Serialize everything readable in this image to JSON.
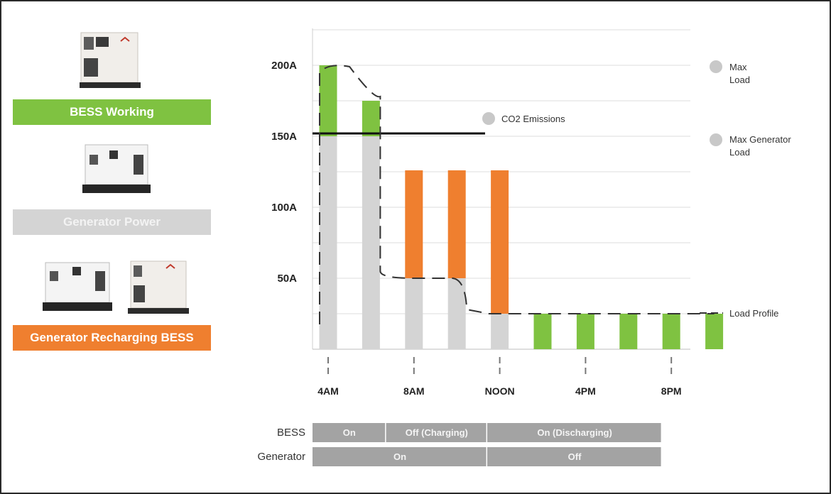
{
  "colors": {
    "green": "#7fc241",
    "gray": "#d4d4d4",
    "orange": "#ef7f2f",
    "timeline_bar": "#a3a3a3"
  },
  "legend": [
    {
      "label": "BESS Working",
      "color": "#7fc241",
      "icon": "bess-unit-image"
    },
    {
      "label": "Generator Power",
      "color": "#d4d4d4",
      "icon": "generator-unit-image"
    },
    {
      "label": "Generator Recharging BESS",
      "color": "#ef7f2f",
      "icon": "generator-and-bess-image"
    }
  ],
  "annotations": {
    "max_load": "Max\nLoad",
    "co2": "CO2 Emissions",
    "max_generator_load": "Max Generator\nLoad",
    "load_profile": "Load Profile"
  },
  "chart_data": {
    "type": "bar",
    "stacked": true,
    "y_tick_labels": [
      "50A",
      "100A",
      "150A",
      "200A"
    ],
    "y_ticks": [
      50,
      100,
      150,
      200
    ],
    "ylim": [
      0,
      225
    ],
    "x_tick_labels": [
      "4AM",
      "8AM",
      "NOON",
      "4PM",
      "8PM"
    ],
    "x_ticks_hours": [
      4,
      8,
      12,
      16,
      20
    ],
    "bar_hours": [
      4,
      6,
      8,
      10,
      12,
      14,
      16,
      18,
      20,
      22
    ],
    "series": [
      {
        "name": "Generator Power",
        "color": "#d4d4d4",
        "values": [
          150,
          150,
          50,
          50,
          25,
          0,
          0,
          0,
          0,
          0
        ]
      },
      {
        "name": "BESS Working",
        "color": "#7fc241",
        "values": [
          50,
          25,
          0,
          0,
          0,
          25,
          25,
          25,
          25,
          25
        ]
      },
      {
        "name": "Generator Recharging BESS",
        "color": "#ef7f2f",
        "values": [
          0,
          0,
          76,
          76,
          101,
          0,
          0,
          0,
          0,
          0
        ]
      }
    ],
    "max_generator_load": 152,
    "max_load": 200,
    "load_profile": [
      200,
      175,
      50,
      50,
      25,
      25,
      25,
      25,
      25,
      25
    ],
    "grid": true
  },
  "timeline": {
    "rows": [
      {
        "label": "BESS",
        "segments": [
          {
            "label": "On",
            "from_hour": 3.5,
            "to_hour": 7.5
          },
          {
            "label": "Off (Charging)",
            "from_hour": 7.5,
            "to_hour": 13.0
          },
          {
            "label": "On  (Discharging)",
            "from_hour": 13.0,
            "to_hour": 22.5
          }
        ]
      },
      {
        "label": "Generator",
        "segments": [
          {
            "label": "On",
            "from_hour": 3.5,
            "to_hour": 13.0
          },
          {
            "label": "Off",
            "from_hour": 13.0,
            "to_hour": 22.5
          }
        ]
      }
    ]
  }
}
